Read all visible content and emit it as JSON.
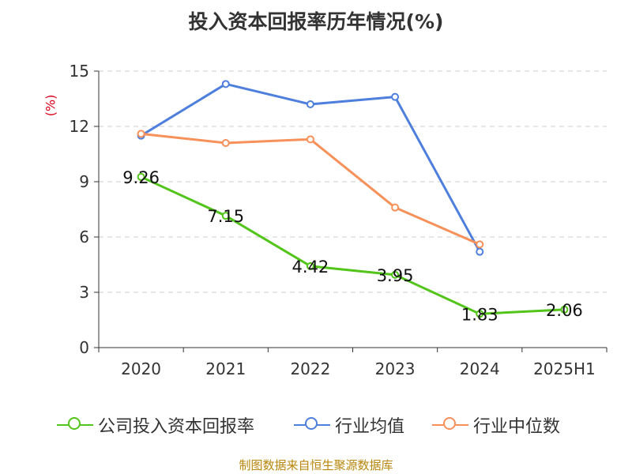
{
  "chart_data": {
    "type": "line",
    "title": "投入资本回报率历年情况(%)",
    "ylabel": "(%)",
    "xlabel": "",
    "categories": [
      "2020",
      "2021",
      "2022",
      "2023",
      "2024",
      "2025H1"
    ],
    "ylim": [
      0,
      15
    ],
    "yticks": [
      0,
      3,
      6,
      9,
      12,
      15
    ],
    "grid": true,
    "legend_position": "bottom",
    "series": [
      {
        "name": "公司投入资本回报率",
        "color": "#52c41a",
        "values": [
          9.26,
          7.15,
          4.42,
          3.95,
          1.83,
          2.06
        ],
        "show_labels": true
      },
      {
        "name": "行业均值",
        "color": "#4e7fdc",
        "values": [
          11.5,
          14.3,
          13.2,
          13.6,
          5.2,
          null
        ],
        "show_labels": false
      },
      {
        "name": "行业中位数",
        "color": "#f79159",
        "values": [
          11.6,
          11.1,
          11.3,
          7.6,
          5.6,
          null
        ],
        "show_labels": false
      }
    ]
  },
  "footer": {
    "source": "制图数据来自恒生聚源数据库"
  }
}
